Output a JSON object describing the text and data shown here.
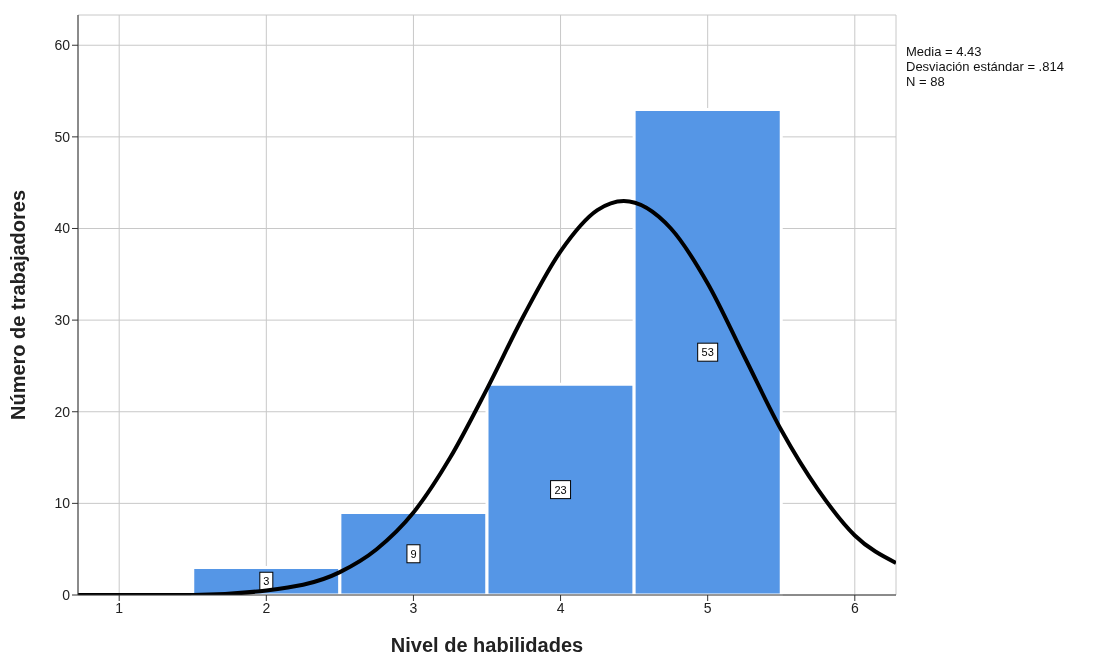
{
  "chart_data": {
    "type": "histogram",
    "xlabel": "Nivel de habilidades",
    "ylabel": "Número de trabajadores",
    "bins": [
      1.5,
      2.5,
      3.5,
      4.5,
      5.5
    ],
    "values": [
      3,
      9,
      23,
      53
    ],
    "color": "#5596e6",
    "value_labels": [
      "3",
      "9",
      "23",
      "53"
    ],
    "xlim": [
      0.72,
      6.28
    ],
    "xticks": [
      1,
      2,
      3,
      4,
      5,
      6
    ],
    "ylim": [
      0,
      63.3
    ],
    "yticks": [
      0,
      10,
      20,
      30,
      40,
      50,
      60
    ],
    "grid": true,
    "annotations": [
      "Media = 4.43",
      "Desviación estándar = .814",
      "N = 88"
    ],
    "series": [
      {
        "type": "line",
        "color": "#000000",
        "x": [
          0.72,
          1,
          1.5,
          2,
          2.5,
          2.75,
          3,
          3.25,
          3.5,
          3.75,
          4,
          4.25,
          4.43,
          4.75,
          5,
          5.25,
          5.5,
          5.75,
          6,
          6.28
        ],
        "values": [
          0,
          0,
          0,
          0.5,
          2.5,
          5,
          9,
          15,
          22.5,
          30.5,
          37.5,
          42,
          43,
          40,
          34,
          26,
          18,
          11.5,
          6.5,
          3.5
        ]
      }
    ]
  }
}
